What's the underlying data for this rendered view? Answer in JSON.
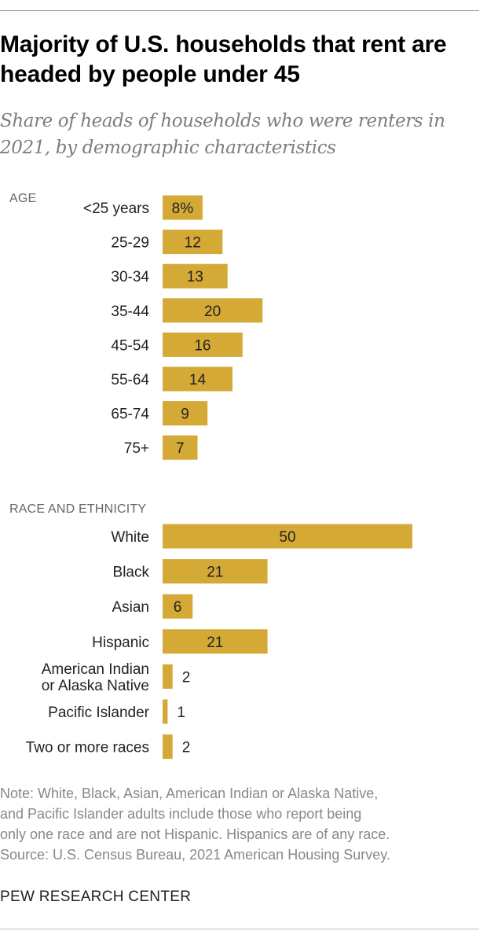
{
  "title": "Majority of U.S. households that rent are headed by people under 45",
  "subtitle": "Share of heads of households who were renters in 2021, by demographic characteristics",
  "colors": {
    "bar": "#d4a936",
    "text": "#222222",
    "muted": "#888888"
  },
  "chart_data": [
    {
      "type": "bar",
      "orientation": "horizontal",
      "section_label": "AGE",
      "categories": [
        "<25 years",
        "25-29",
        "30-34",
        "35-44",
        "45-54",
        "55-64",
        "65-74",
        "75+"
      ],
      "values": [
        8,
        12,
        13,
        20,
        16,
        14,
        9,
        7
      ],
      "value_labels": [
        "8%",
        "12",
        "13",
        "20",
        "16",
        "14",
        "9",
        "7"
      ]
    },
    {
      "type": "bar",
      "orientation": "horizontal",
      "section_label": "RACE AND ETHNICITY",
      "categories": [
        "White",
        "Black",
        "Asian",
        "Hispanic",
        "American Indian\nor Alaska Native",
        "Pacific Islander",
        "Two or more races"
      ],
      "values": [
        50,
        21,
        6,
        21,
        2,
        1,
        2
      ],
      "value_labels": [
        "50",
        "21",
        "6",
        "21",
        "2",
        "1",
        "2"
      ]
    }
  ],
  "note_lines": [
    "Note: White, Black, Asian, American Indian or Alaska Native,",
    "and Pacific Islander adults include those who report being",
    "only one race and are not Hispanic. Hispanics are of any race.",
    "Source: U.S. Census Bureau, 2021 American Housing Survey."
  ],
  "brand": "PEW RESEARCH CENTER"
}
